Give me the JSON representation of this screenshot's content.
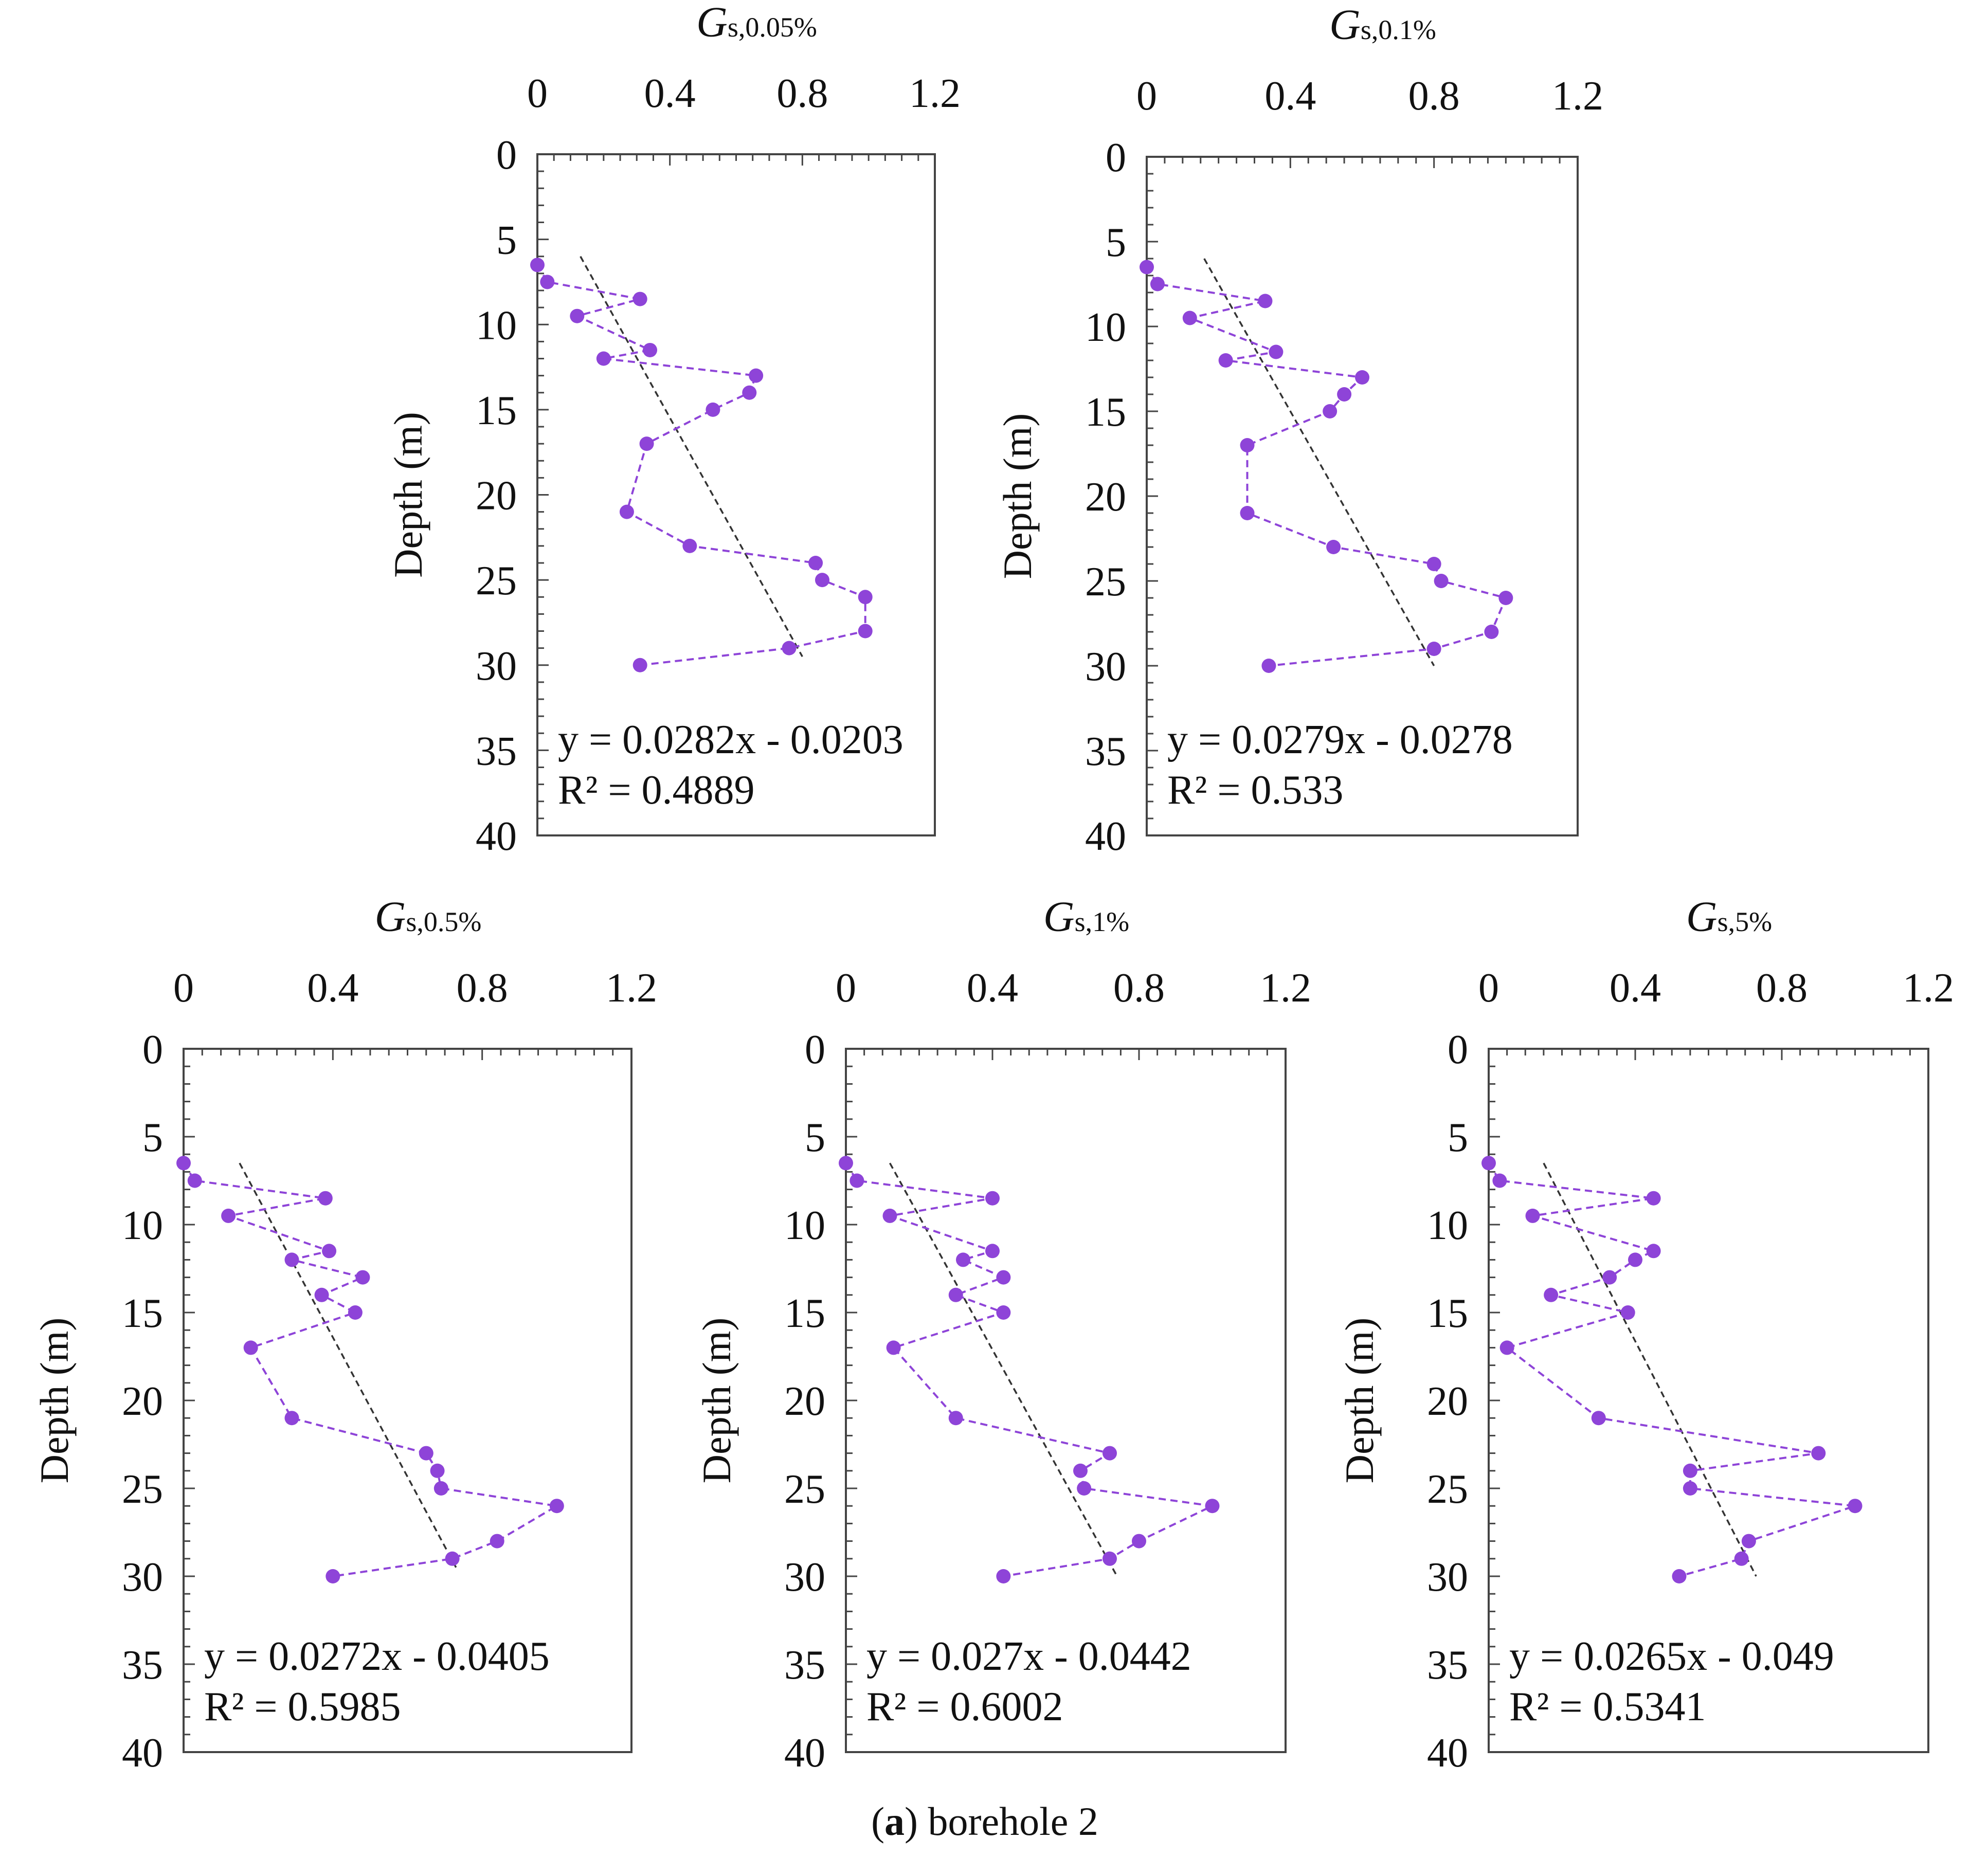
{
  "caption": {
    "label": "a",
    "text": " borehole 2"
  },
  "chart_data": [
    {
      "type": "line",
      "title": {
        "main": "G",
        "sub": "s,0.05%"
      },
      "ylabel": "Depth (m)",
      "xlim": [
        0,
        1.2
      ],
      "ylim": [
        0,
        40
      ],
      "y_inverted": true,
      "x_axis_position": "top",
      "xticks": [
        "0",
        "0.4",
        "0.8",
        "1.2"
      ],
      "yticks": [
        "0",
        "5",
        "10",
        "15",
        "20",
        "25",
        "30",
        "35",
        "40"
      ],
      "series": [
        {
          "style": "dashed-markers",
          "color": "#8e44d8",
          "points": [
            [
              0.0,
              6.5
            ],
            [
              0.03,
              7.5
            ],
            [
              0.31,
              8.5
            ],
            [
              0.12,
              9.5
            ],
            [
              0.34,
              11.5
            ],
            [
              0.2,
              12
            ],
            [
              0.66,
              13
            ],
            [
              0.64,
              14
            ],
            [
              0.53,
              15
            ],
            [
              0.33,
              17
            ],
            [
              0.27,
              21
            ],
            [
              0.46,
              23
            ],
            [
              0.84,
              24
            ],
            [
              0.86,
              25
            ],
            [
              0.99,
              26
            ],
            [
              0.99,
              28
            ],
            [
              0.76,
              29
            ],
            [
              0.31,
              30
            ]
          ]
        },
        {
          "style": "trendline",
          "color": "#333333",
          "points": [
            [
              0.13,
              6
            ],
            [
              0.8,
              29.5
            ]
          ]
        }
      ],
      "equation": "y = 0.0282x - 0.0203",
      "r2": "R² = 0.4889"
    },
    {
      "type": "line",
      "title": {
        "main": "G",
        "sub": "s,0.1%"
      },
      "ylabel": "Depth (m)",
      "xlim": [
        0,
        1.2
      ],
      "ylim": [
        0,
        40
      ],
      "y_inverted": true,
      "x_axis_position": "top",
      "xticks": [
        "0",
        "0.4",
        "0.8",
        "1.2"
      ],
      "yticks": [
        "0",
        "5",
        "10",
        "15",
        "20",
        "25",
        "30",
        "35",
        "40"
      ],
      "series": [
        {
          "style": "dashed-markers",
          "color": "#8e44d8",
          "points": [
            [
              0.0,
              6.5
            ],
            [
              0.03,
              7.5
            ],
            [
              0.33,
              8.5
            ],
            [
              0.12,
              9.5
            ],
            [
              0.36,
              11.5
            ],
            [
              0.22,
              12
            ],
            [
              0.6,
              13
            ],
            [
              0.55,
              14
            ],
            [
              0.51,
              15
            ],
            [
              0.28,
              17
            ],
            [
              0.28,
              21
            ],
            [
              0.52,
              23
            ],
            [
              0.8,
              24
            ],
            [
              0.82,
              25
            ],
            [
              1.0,
              26
            ],
            [
              0.96,
              28
            ],
            [
              0.8,
              29
            ],
            [
              0.34,
              30
            ]
          ]
        },
        {
          "style": "trendline",
          "color": "#333333",
          "points": [
            [
              0.16,
              6
            ],
            [
              0.8,
              30
            ]
          ]
        }
      ],
      "equation": "y = 0.0279x - 0.0278",
      "r2": "R² = 0.533"
    },
    {
      "type": "line",
      "title": {
        "main": "G",
        "sub": "s,0.5%"
      },
      "ylabel": "Depth (m)",
      "xlim": [
        0,
        1.2
      ],
      "ylim": [
        0,
        40
      ],
      "y_inverted": true,
      "x_axis_position": "top",
      "xticks": [
        "0",
        "0.4",
        "0.8",
        "1.2"
      ],
      "yticks": [
        "0",
        "5",
        "10",
        "15",
        "20",
        "25",
        "30",
        "35",
        "40"
      ],
      "series": [
        {
          "style": "dashed-markers",
          "color": "#8e44d8",
          "points": [
            [
              0.0,
              6.5
            ],
            [
              0.03,
              7.5
            ],
            [
              0.38,
              8.5
            ],
            [
              0.12,
              9.5
            ],
            [
              0.39,
              11.5
            ],
            [
              0.29,
              12
            ],
            [
              0.48,
              13
            ],
            [
              0.37,
              14
            ],
            [
              0.46,
              15
            ],
            [
              0.18,
              17
            ],
            [
              0.29,
              21
            ],
            [
              0.65,
              23
            ],
            [
              0.68,
              24
            ],
            [
              0.69,
              25
            ],
            [
              1.0,
              26
            ],
            [
              0.84,
              28
            ],
            [
              0.72,
              29
            ],
            [
              0.4,
              30
            ]
          ]
        },
        {
          "style": "trendline",
          "color": "#333333",
          "points": [
            [
              0.15,
              6.5
            ],
            [
              0.73,
              29.5
            ]
          ]
        }
      ],
      "equation": "y = 0.0272x - 0.0405",
      "r2": "R² = 0.5985"
    },
    {
      "type": "line",
      "title": {
        "main": "G",
        "sub": "s,1%"
      },
      "ylabel": "Depth (m)",
      "xlim": [
        0,
        1.2
      ],
      "ylim": [
        0,
        40
      ],
      "y_inverted": true,
      "x_axis_position": "top",
      "xticks": [
        "0",
        "0.4",
        "0.8",
        "1.2"
      ],
      "yticks": [
        "0",
        "5",
        "10",
        "15",
        "20",
        "25",
        "30",
        "35",
        "40"
      ],
      "series": [
        {
          "style": "dashed-markers",
          "color": "#8e44d8",
          "points": [
            [
              0.0,
              6.5
            ],
            [
              0.03,
              7.5
            ],
            [
              0.4,
              8.5
            ],
            [
              0.12,
              9.5
            ],
            [
              0.4,
              11.5
            ],
            [
              0.32,
              12
            ],
            [
              0.43,
              13
            ],
            [
              0.3,
              14
            ],
            [
              0.43,
              15
            ],
            [
              0.13,
              17
            ],
            [
              0.3,
              21
            ],
            [
              0.72,
              23
            ],
            [
              0.64,
              24
            ],
            [
              0.65,
              25
            ],
            [
              1.0,
              26
            ],
            [
              0.8,
              28
            ],
            [
              0.72,
              29
            ],
            [
              0.43,
              30
            ]
          ]
        },
        {
          "style": "trendline",
          "color": "#333333",
          "points": [
            [
              0.12,
              6.5
            ],
            [
              0.74,
              30
            ]
          ]
        }
      ],
      "equation": "y = 0.027x - 0.0442",
      "r2": "R² = 0.6002"
    },
    {
      "type": "line",
      "title": {
        "main": "G",
        "sub": "s,5%"
      },
      "ylabel": "Depth (m)",
      "xlim": [
        0,
        1.2
      ],
      "ylim": [
        0,
        40
      ],
      "y_inverted": true,
      "x_axis_position": "top",
      "xticks": [
        "0",
        "0.4",
        "0.8",
        "1.2"
      ],
      "yticks": [
        "0",
        "5",
        "10",
        "15",
        "20",
        "25",
        "30",
        "35",
        "40"
      ],
      "series": [
        {
          "style": "dashed-markers",
          "color": "#8e44d8",
          "points": [
            [
              0.0,
              6.5
            ],
            [
              0.03,
              7.5
            ],
            [
              0.45,
              8.5
            ],
            [
              0.12,
              9.5
            ],
            [
              0.45,
              11.5
            ],
            [
              0.4,
              12
            ],
            [
              0.33,
              13
            ],
            [
              0.17,
              14
            ],
            [
              0.38,
              15
            ],
            [
              0.05,
              17
            ],
            [
              0.3,
              21
            ],
            [
              0.9,
              23
            ],
            [
              0.55,
              24
            ],
            [
              0.55,
              25
            ],
            [
              1.0,
              26
            ],
            [
              0.71,
              28
            ],
            [
              0.69,
              29
            ],
            [
              0.52,
              30
            ]
          ]
        },
        {
          "style": "trendline",
          "color": "#333333",
          "points": [
            [
              0.15,
              6.5
            ],
            [
              0.73,
              30
            ]
          ]
        }
      ],
      "equation": "y = 0.0265x - 0.049",
      "r2": "R² = 0.5341"
    }
  ]
}
